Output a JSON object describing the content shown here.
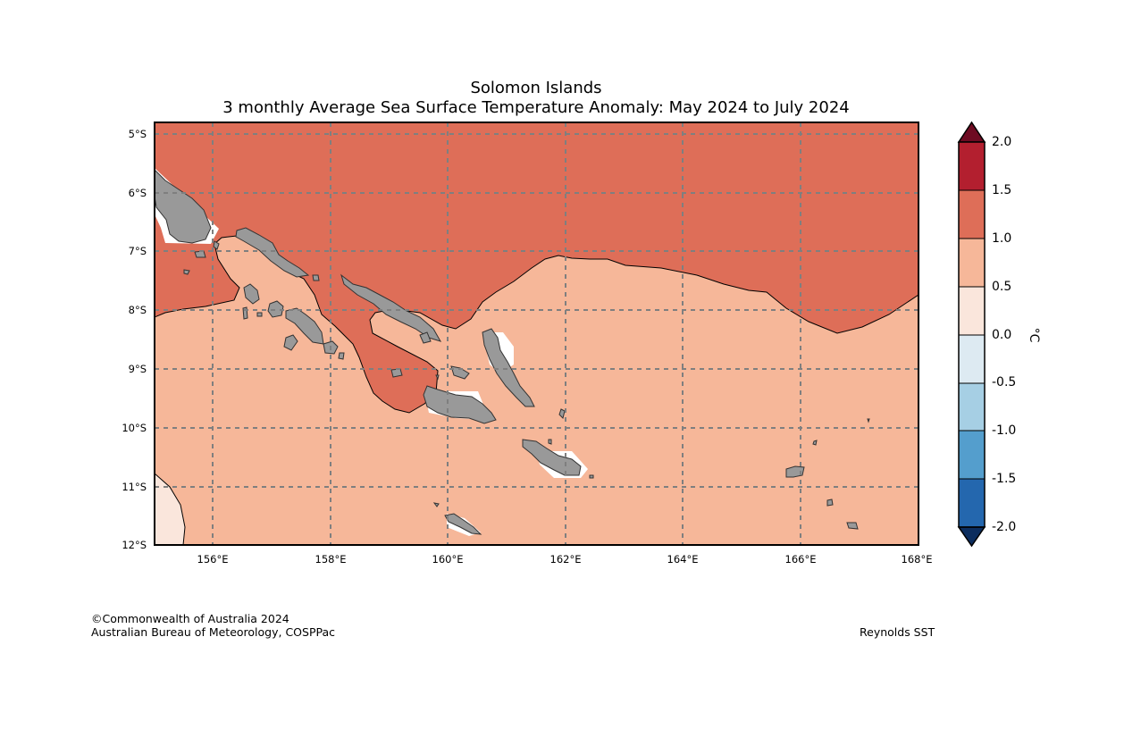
{
  "title": {
    "line1": "Solomon Islands",
    "line2": "3 monthly Average Sea Surface Temperature Anomaly: May 2024 to July 2024"
  },
  "map": {
    "lon_range": [
      155,
      168
    ],
    "lat_range": [
      -12,
      -4.8
    ],
    "lon_ticks": [
      "156°E",
      "158°E",
      "160°E",
      "162°E",
      "164°E",
      "166°E",
      "168°E"
    ],
    "lat_ticks": [
      "5°S",
      "6°S",
      "7°S",
      "8°S",
      "9°S",
      "10°S",
      "11°S",
      "12°S"
    ],
    "gridlines": "dashed",
    "land_label": "land",
    "anomaly_regions": [
      "1.0 to 1.5",
      "0.5 to 1.0",
      "0.0 to 0.5"
    ]
  },
  "colorbar": {
    "unit": "°C",
    "levels": [
      "2.0",
      "1.5",
      "1.0",
      "0.5",
      "0.0",
      "-0.5",
      "-1.0",
      "-1.5",
      "-2.0"
    ],
    "colors": [
      "#b31f2f",
      "#de6e58",
      "#f6b799",
      "#fae6dc",
      "#ddeaf2",
      "#a6cfe4",
      "#549ecd",
      "#2467ae"
    ],
    "over_color": "#6e0b22",
    "under_color": "#0c2d5e"
  },
  "colors": {
    "anom_1_1_5": "#de6e58",
    "anom_0_5_1": "#f6b799",
    "anom_0_0_5": "#fae6dc",
    "land": "#999999",
    "grid": "#7f7f7f"
  },
  "footer": {
    "copyright": "©Commonwealth of Australia 2024",
    "agency": "Australian Bureau of Meteorology, COSPPac",
    "source": "Reynolds SST"
  }
}
